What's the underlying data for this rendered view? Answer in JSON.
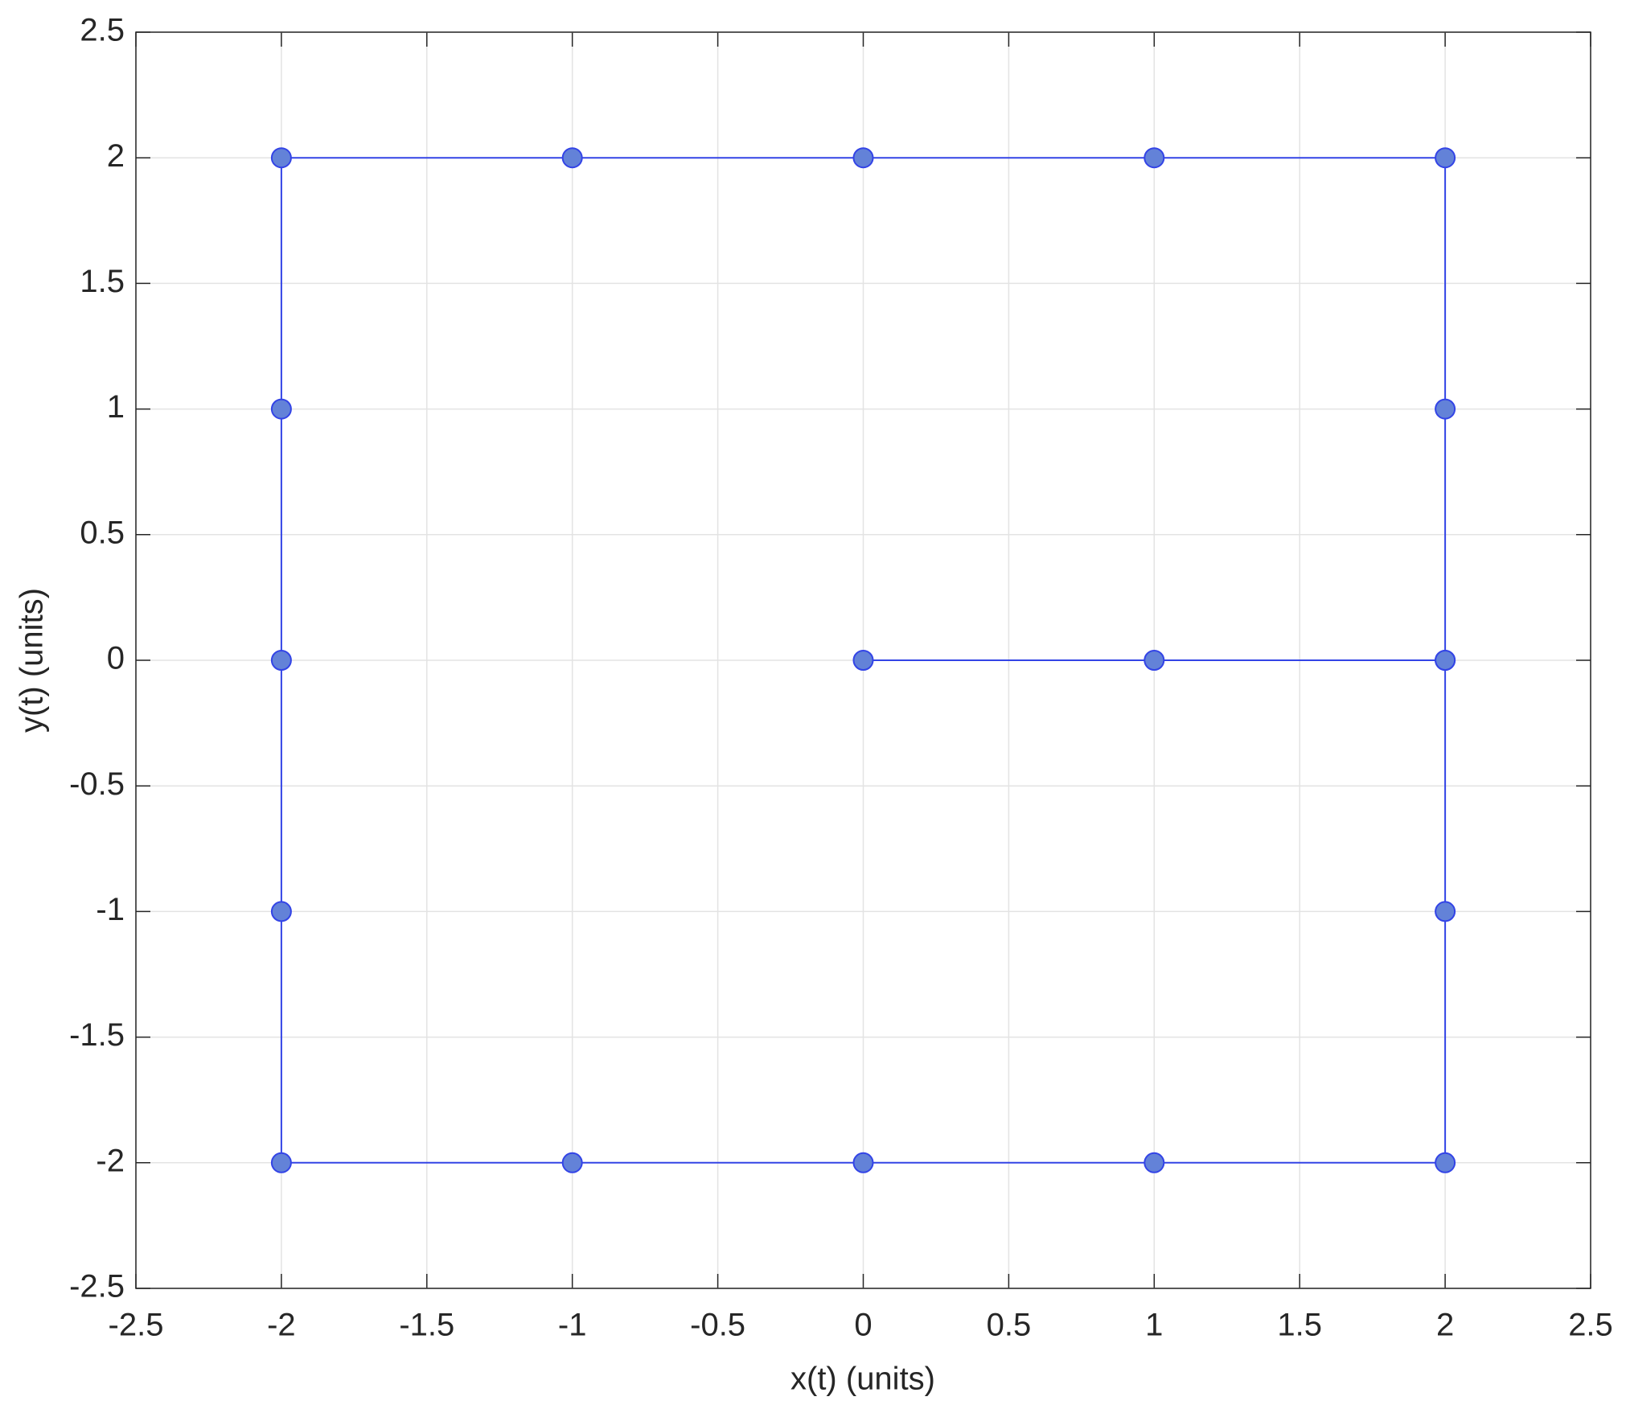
{
  "chart_data": {
    "type": "line",
    "x_label": "x(t) (units)",
    "y_label": "y(t) (units)",
    "series": [
      {
        "color": "#3344e6",
        "marker_color": "#6382d8",
        "x": [
          0,
          1,
          2,
          2,
          2,
          1,
          0,
          -1,
          -2,
          -2,
          -2,
          -2,
          -2,
          -1,
          0,
          1,
          2,
          2,
          2
        ],
        "values": [
          0,
          0,
          0,
          1,
          2,
          2,
          2,
          2,
          2,
          1,
          0,
          -1,
          -2,
          -2,
          -2,
          -2,
          -2,
          -1,
          0
        ]
      }
    ],
    "xlim": [
      -2.5,
      2.5
    ],
    "ylim": [
      -2.5,
      2.5
    ],
    "xticks": [
      -2.5,
      -2,
      -1.5,
      -1,
      -0.5,
      0,
      0.5,
      1,
      1.5,
      2,
      2.5
    ],
    "yticks": [
      -2.5,
      -2,
      -1.5,
      -1,
      -0.5,
      0,
      0.5,
      1,
      1.5,
      2,
      2.5
    ],
    "grid": true
  }
}
